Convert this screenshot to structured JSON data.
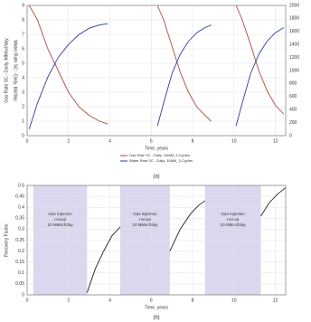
{
  "chart_data": [
    {
      "type": "line",
      "panel_label": "(a)",
      "xlabel": "Time, years",
      "ylabel": "Gas Rate SC - Daily, MMscf/day",
      "y2label": "Water Rate SC - Daily, bbl/day",
      "x": [
        0.1,
        0.5,
        1,
        1.5,
        2,
        2.5,
        3,
        3.5,
        3.9,
        null,
        6.3,
        6.6,
        7,
        7.4,
        7.8,
        8.2,
        8.6,
        8.9,
        null,
        10.1,
        10.4,
        10.8,
        11.2,
        11.6,
        12,
        12.4
      ],
      "series": [
        {
          "name": "Gas Rate SC - Daily, 10MM_3-Cycles",
          "color": "#b04a3e",
          "axis": "y",
          "values": [
            9,
            8,
            6,
            4.5,
            3,
            2,
            1.4,
            1,
            0.8,
            null,
            9,
            8,
            6.2,
            4.4,
            3,
            2,
            1.4,
            1,
            null,
            9,
            8,
            6.3,
            4.5,
            3.1,
            2.1,
            1.5
          ]
        },
        {
          "name": "Water Rate SC - Daily, 10MM_3-Cycles",
          "color": "#2b3c9c",
          "axis": "y2",
          "values": [
            100,
            500,
            900,
            1200,
            1400,
            1550,
            1650,
            1700,
            1720,
            null,
            150,
            500,
            950,
            1250,
            1450,
            1580,
            1660,
            1700,
            null,
            150,
            500,
            950,
            1250,
            1450,
            1580,
            1660
          ]
        }
      ],
      "xlim": [
        0,
        12.5
      ],
      "xticks": [
        0,
        2,
        4,
        6,
        8,
        10,
        12
      ],
      "ylim": [
        0,
        9
      ],
      "yticks": [
        0,
        1,
        2,
        3,
        4,
        5,
        6,
        7,
        8,
        9
      ],
      "y2lim": [
        0,
        2000
      ],
      "y2ticks": [
        0,
        200,
        400,
        600,
        800,
        1000,
        1200,
        1400,
        1600,
        1800,
        2000
      ],
      "grid": true
    },
    {
      "type": "line",
      "panel_label": "(b)",
      "xlabel": "Time, years",
      "ylabel": "Recovery Factor",
      "x": [
        2.9,
        3.3,
        3.7,
        4.1,
        4.5,
        null,
        6.9,
        7.4,
        7.9,
        8.3,
        8.6,
        null,
        11.3,
        11.7,
        12.1,
        12.5
      ],
      "series": [
        {
          "name": "Recovery Factor",
          "color": "#222222",
          "values": [
            0.01,
            0.12,
            0.2,
            0.27,
            0.31,
            null,
            0.2,
            0.3,
            0.37,
            0.41,
            0.43,
            null,
            0.36,
            0.42,
            0.46,
            0.49
          ]
        }
      ],
      "shaded_periods": [
        [
          0.3,
          2.9
        ],
        [
          4.5,
          6.9
        ],
        [
          8.6,
          11.3
        ]
      ],
      "shade_color": "#d9d8ee",
      "annotations": [
        [
          "Gas Injection",
          "Period",
          "10 MMscf/day"
        ],
        [
          "Gas Injection",
          "Period",
          "10 MMscf/day"
        ],
        [
          "Gas Injection",
          "Period",
          "10 MMscf/day"
        ]
      ],
      "xlim": [
        0,
        12.5
      ],
      "xticks": [
        0,
        2,
        4,
        6,
        8,
        10,
        12
      ],
      "ylim": [
        0,
        0.5
      ],
      "yticks": [
        0,
        0.05,
        0.1,
        0.15,
        0.2,
        0.25,
        0.3,
        0.35,
        0.4,
        0.45,
        0.5
      ],
      "grid": true
    }
  ]
}
